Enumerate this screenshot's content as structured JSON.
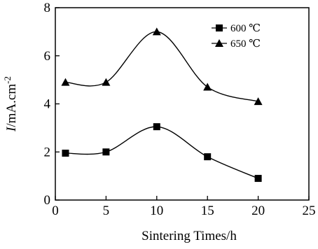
{
  "chart_data": {
    "type": "line",
    "title": "",
    "xlabel": "Sintering Times/h",
    "ylabel": {
      "italic": "I",
      "main": "/mA.cm",
      "sup": "-2"
    },
    "xlim": [
      0,
      25
    ],
    "ylim": [
      0,
      8
    ],
    "xticks": [
      0,
      5,
      10,
      15,
      20,
      25
    ],
    "yticks": [
      0,
      2,
      4,
      6,
      8
    ],
    "grid": false,
    "legend_position": "top-right",
    "x": [
      1,
      5,
      10,
      15,
      20
    ],
    "series": [
      {
        "name": "600 ℃",
        "marker": "square",
        "color": "#000000",
        "values": [
          1.95,
          2.0,
          3.05,
          1.8,
          0.9
        ]
      },
      {
        "name": "650 ℃",
        "marker": "triangle",
        "color": "#000000",
        "values": [
          4.9,
          4.9,
          7.0,
          4.7,
          4.1
        ]
      }
    ]
  }
}
